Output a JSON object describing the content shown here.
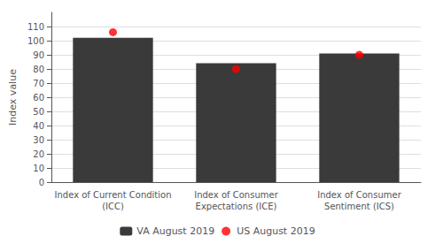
{
  "chart_data": {
    "type": "bar",
    "categories": [
      "Index of Current Condition\n(ICC)",
      "Index of Consumer\nExpectations (ICE)",
      "Index of Consumer\nSentiment (ICS)"
    ],
    "series": [
      {
        "name": "VA August 2019",
        "type": "bar",
        "color": "#3a3a3a",
        "values": [
          102,
          84,
          91
        ]
      },
      {
        "name": "US August 2019",
        "type": "scatter",
        "marker": "circle",
        "color": "#ff0000",
        "values": [
          106,
          80,
          90
        ]
      }
    ],
    "ylabel": "Index value",
    "ylim": [
      0,
      120
    ],
    "yticks": [
      0,
      10,
      20,
      30,
      40,
      50,
      60,
      70,
      80,
      90,
      100,
      110
    ],
    "grid": true,
    "legend": "bottom"
  }
}
